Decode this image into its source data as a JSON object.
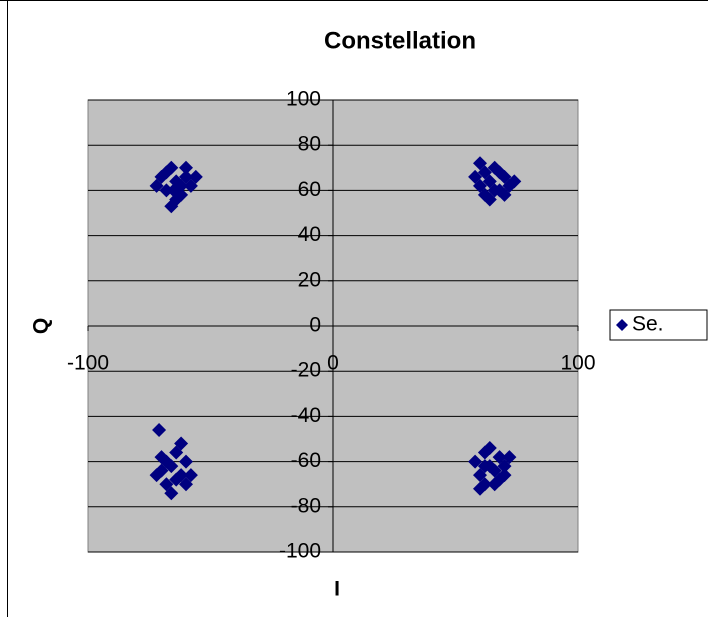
{
  "chart_data": {
    "type": "scatter",
    "title": "Constellation",
    "xlabel": "I",
    "ylabel": "Q",
    "xlim": [
      -100,
      100
    ],
    "ylim": [
      -100,
      100
    ],
    "xticks": [
      -100,
      0,
      100
    ],
    "yticks": [
      -100,
      -80,
      -60,
      -40,
      -20,
      0,
      20,
      40,
      60,
      80,
      100
    ],
    "grid": true,
    "legend": "right",
    "series": [
      {
        "name": "Se.",
        "color": "#000080",
        "x": [
          -64,
          -68,
          -60,
          -66,
          -70,
          -62,
          -58,
          -72,
          -64,
          -66,
          -60,
          -56,
          -68,
          -62,
          -65,
          64,
          60,
          68,
          62,
          70,
          66,
          58,
          72,
          64,
          60,
          68,
          74,
          62,
          66,
          70,
          -66,
          -70,
          -62,
          -68,
          -64,
          -72,
          -60,
          -66,
          -62,
          -58,
          -70,
          -64,
          -68,
          -71,
          -60,
          64,
          62,
          68,
          60,
          66,
          70,
          62,
          64,
          58,
          72,
          66,
          60,
          68,
          62,
          70
        ],
        "values": [
          64,
          60,
          66,
          70,
          66,
          58,
          62,
          62,
          56,
          53,
          70,
          66,
          68,
          62,
          60,
          64,
          72,
          60,
          58,
          66,
          70,
          66,
          62,
          56,
          62,
          68,
          64,
          68,
          60,
          58,
          -62,
          -58,
          -66,
          -70,
          -56,
          -66,
          -60,
          -74,
          -52,
          -66,
          -64,
          -68,
          -60,
          -46,
          -70,
          -62,
          -56,
          -58,
          -66,
          -70,
          -62,
          -70,
          -54,
          -60,
          -58,
          -64,
          -72,
          -68,
          -62,
          -66
        ]
      }
    ]
  }
}
